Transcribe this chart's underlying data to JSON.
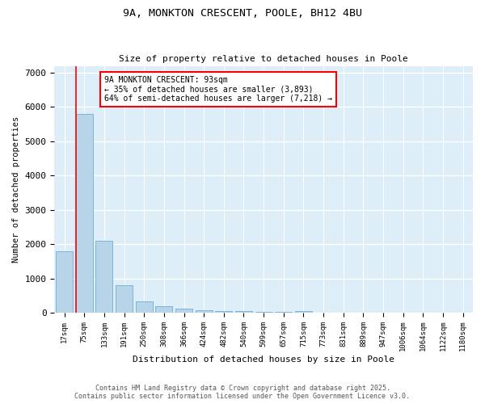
{
  "title_line1": "9A, MONKTON CRESCENT, POOLE, BH12 4BU",
  "title_line2": "Size of property relative to detached houses in Poole",
  "xlabel": "Distribution of detached houses by size in Poole",
  "ylabel": "Number of detached properties",
  "bar_labels": [
    "17sqm",
    "75sqm",
    "133sqm",
    "191sqm",
    "250sqm",
    "308sqm",
    "366sqm",
    "424sqm",
    "482sqm",
    "540sqm",
    "599sqm",
    "657sqm",
    "715sqm",
    "773sqm",
    "831sqm",
    "889sqm",
    "947sqm",
    "1006sqm",
    "1064sqm",
    "1122sqm",
    "1180sqm"
  ],
  "bar_values": [
    1800,
    5800,
    2100,
    800,
    330,
    200,
    110,
    80,
    60,
    40,
    30,
    15,
    60,
    0,
    0,
    0,
    0,
    0,
    0,
    0,
    0
  ],
  "bar_color": "#b8d4e8",
  "bar_edge_color": "#6aaed6",
  "red_line_index": 1,
  "annotation_text": "9A MONKTON CRESCENT: 93sqm\n← 35% of detached houses are smaller (3,893)\n64% of semi-detached houses are larger (7,218) →",
  "ylim": [
    0,
    7200
  ],
  "yticks": [
    0,
    1000,
    2000,
    3000,
    4000,
    5000,
    6000,
    7000
  ],
  "bg_color": "#ddeef8",
  "footer_line1": "Contains HM Land Registry data © Crown copyright and database right 2025.",
  "footer_line2": "Contains public sector information licensed under the Open Government Licence v3.0."
}
